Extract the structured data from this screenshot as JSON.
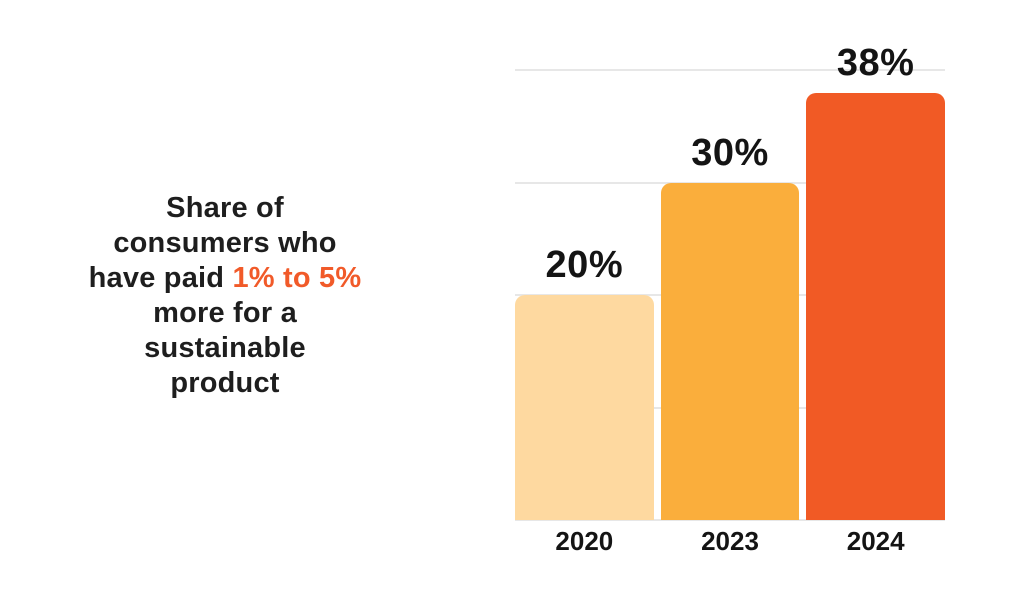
{
  "title": {
    "line1": "Share of",
    "line2": "consumers who",
    "line3_pre": "have paid ",
    "line3_highlight": "1% to 5%",
    "line4": "more for a",
    "line5": "sustainable",
    "line6": "product",
    "text_color": "#1E1E1E",
    "highlight_color": "#F15A29"
  },
  "chart_data": {
    "type": "bar",
    "title": "Share of consumers who have paid 1% to 5% more for a sustainable product",
    "categories": [
      "2020",
      "2023",
      "2024"
    ],
    "values": [
      20,
      30,
      38
    ],
    "data_labels": [
      "20%",
      "30%",
      "38%"
    ],
    "bar_colors": [
      "#FED9A0",
      "#FAAE3C",
      "#F15A25"
    ],
    "ylim": [
      0,
      40
    ],
    "gridline_interval": 10,
    "grid": true,
    "gridline_color": "#E7E7E7",
    "legend": false,
    "xlabel": "",
    "ylabel": "",
    "label_color": "#141414"
  }
}
